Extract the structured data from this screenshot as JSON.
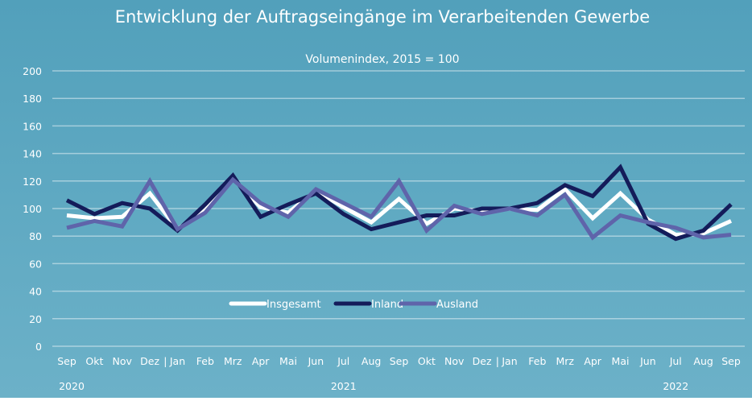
{
  "chart_data": {
    "type": "line",
    "title": "Entwicklung der Auftragseingänge im Verarbeitenden Gewerbe",
    "subtitle": "Volumenindex, 2015 = 100",
    "xlabel": "",
    "ylabel": "",
    "ylim": [
      0,
      200
    ],
    "yticks": [
      0,
      20,
      40,
      60,
      80,
      100,
      120,
      140,
      160,
      180,
      200
    ],
    "grid": true,
    "legend_position": "bottom-center",
    "categories": [
      "Sep",
      "Okt",
      "Nov",
      "Dez",
      "Jan",
      "Feb",
      "Mrz",
      "Apr",
      "Mai",
      "Jun",
      "Jul",
      "Aug",
      "Sep",
      "Okt",
      "Nov",
      "Dez",
      "Jan",
      "Feb",
      "Mrz",
      "Apr",
      "Mai",
      "Jun",
      "Jul",
      "Aug",
      "Sep"
    ],
    "year_labels": [
      {
        "label": "2020",
        "index": 0
      },
      {
        "label": "2021",
        "index": 10
      },
      {
        "label": "2022",
        "index": 22
      }
    ],
    "year_separator": "|",
    "series": [
      {
        "name": "Insgesamt",
        "color": "#ffffff",
        "values": [
          95,
          93,
          94,
          111,
          85,
          99,
          122,
          101,
          97,
          113,
          101,
          90,
          107,
          89,
          100,
          98,
          100,
          99,
          114,
          93,
          111,
          92,
          81,
          82,
          91
        ]
      },
      {
        "name": "Inland",
        "color": "#141c5a",
        "values": [
          106,
          96,
          104,
          100,
          84,
          103,
          124,
          94,
          103,
          111,
          96,
          85,
          90,
          95,
          95,
          100,
          100,
          104,
          117,
          109,
          130,
          89,
          78,
          84,
          103
        ]
      },
      {
        "name": "Ausland",
        "color": "#5f64aa",
        "values": [
          86,
          91,
          87,
          120,
          85,
          97,
          121,
          104,
          94,
          114,
          104,
          94,
          120,
          84,
          102,
          96,
          100,
          95,
          110,
          79,
          95,
          90,
          86,
          79,
          81
        ]
      }
    ]
  }
}
